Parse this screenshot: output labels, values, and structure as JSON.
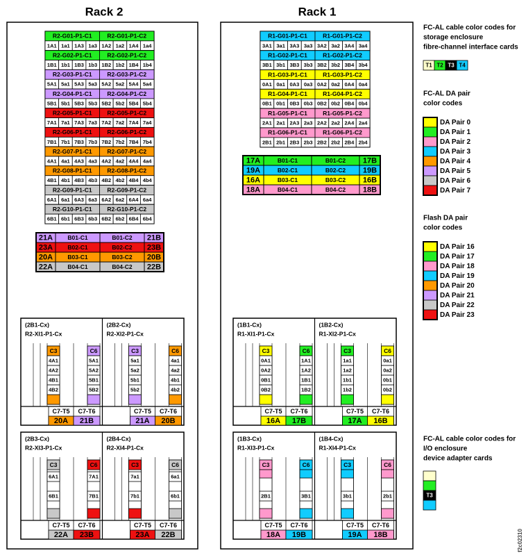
{
  "figure_id": "f2c02310",
  "racks": [
    {
      "title": "Rack 2",
      "enclosures": [
        {
          "c1": "R2-G01-P1-C1",
          "c2": "R2-G01-P1-C2",
          "color": "#22ee22",
          "ports": [
            "1A1",
            "1a1",
            "1A3",
            "1a3",
            "1A2",
            "1a2",
            "1A4",
            "1a4"
          ]
        },
        {
          "c1": "R2-G02-P1-C1",
          "c2": "R2-G02-P1-C2",
          "color": "#22ee22",
          "ports": [
            "1B1",
            "1b1",
            "1B3",
            "1b3",
            "1B2",
            "1b2",
            "1B4",
            "1b4"
          ]
        },
        {
          "c1": "R2-G03-P1-C1",
          "c2": "R2-G03-P1-C2",
          "color": "#cc99ff",
          "ports": [
            "5A1",
            "5a1",
            "5A3",
            "5a3",
            "5A2",
            "5a2",
            "5A4",
            "5a4"
          ]
        },
        {
          "c1": "R2-G04-P1-C1",
          "c2": "R2-G04-P1-C2",
          "color": "#cc99ff",
          "ports": [
            "5B1",
            "5b1",
            "5B3",
            "5b3",
            "5B2",
            "5b2",
            "5B4",
            "5b4"
          ]
        },
        {
          "c1": "R2-G05-P1-C1",
          "c2": "R2-G05-P1-C2",
          "color": "#ee1111",
          "ports": [
            "7A1",
            "7a1",
            "7A3",
            "7a3",
            "7A2",
            "7a2",
            "7A4",
            "7a4"
          ]
        },
        {
          "c1": "R2-G06-P1-C1",
          "c2": "R2-G06-P1-C2",
          "color": "#ee1111",
          "ports": [
            "7B1",
            "7b1",
            "7B3",
            "7b3",
            "7B2",
            "7b2",
            "7B4",
            "7b4"
          ]
        },
        {
          "c1": "R2-G07-P1-C1",
          "c2": "R2-G07-P1-C2",
          "color": "#ff9900",
          "ports": [
            "4A1",
            "4a1",
            "4A3",
            "4a3",
            "4A2",
            "4a2",
            "4A4",
            "4a4"
          ]
        },
        {
          "c1": "R2-G08-P1-C1",
          "c2": "R2-G08-P1-C2",
          "color": "#ff9900",
          "ports": [
            "4B1",
            "4b1",
            "4B3",
            "4b3",
            "4B2",
            "4b2",
            "4B4",
            "4b4"
          ]
        },
        {
          "c1": "R2-G09-P1-C1",
          "c2": "R2-G09-P1-C2",
          "color": "#c8c8c8",
          "ports": [
            "6A1",
            "6a1",
            "6A3",
            "6a3",
            "6A2",
            "6a2",
            "6A4",
            "6a4"
          ]
        },
        {
          "c1": "R2-G10-P1-C1",
          "c2": "R2-G10-P1-C2",
          "color": "#c8c8c8",
          "ports": [
            "6B1",
            "6b1",
            "6B3",
            "6b3",
            "6B2",
            "6b2",
            "6B4",
            "6b4"
          ]
        }
      ],
      "da_table": [
        {
          "cells": [
            "21A",
            "B01-C1",
            "B01-C2",
            "21B"
          ],
          "color": "#cc99ff"
        },
        {
          "cells": [
            "23A",
            "B02-C1",
            "B02-C2",
            "23B"
          ],
          "color": "#ee1111"
        },
        {
          "cells": [
            "20A",
            "B03-C1",
            "B03-C2",
            "20B"
          ],
          "color": "#ff9900"
        },
        {
          "cells": [
            "22A",
            "B04-C1",
            "B04-C2",
            "22B"
          ],
          "color": "#c8c8c8"
        }
      ],
      "io": [
        {
          "halves": [
            {
              "id": "(2B1-Cx)",
              "name": "R2-XI1-P1-Cx",
              "cards": [
                {
                  "label": "C3",
                  "color": "#ff9900",
                  "ports": [
                    "4A1",
                    "4A2",
                    "4B1",
                    "4B2"
                  ]
                },
                {
                  "label": "C6",
                  "color": "#cc99ff",
                  "ports": [
                    "5A1",
                    "5A2",
                    "5B1",
                    "5B2"
                  ]
                }
              ],
              "cables": [
                "C7-T5",
                "C7-T6"
              ],
              "da": [
                {
                  "label": "20A",
                  "color": "#ff9900"
                },
                {
                  "label": "21B",
                  "color": "#cc99ff"
                }
              ]
            },
            {
              "id": "(2B2-Cx)",
              "name": "R2-XI2-P1-Cx",
              "cards": [
                {
                  "label": "C3",
                  "color": "#cc99ff",
                  "ports": [
                    "5a1",
                    "5a2",
                    "5b1",
                    "5b2"
                  ]
                },
                {
                  "label": "C6",
                  "color": "#ff9900",
                  "ports": [
                    "4a1",
                    "4a2",
                    "4b1",
                    "4b2"
                  ]
                }
              ],
              "cables": [
                "C7-T5",
                "C7-T6"
              ],
              "da": [
                {
                  "label": "21A",
                  "color": "#cc99ff"
                },
                {
                  "label": "20B",
                  "color": "#ff9900"
                }
              ]
            }
          ]
        },
        {
          "halves": [
            {
              "id": "(2B3-Cx)",
              "name": "R2-XI3-P1-Cx",
              "cards": [
                {
                  "label": "C3",
                  "color": "#c8c8c8",
                  "ports": [
                    "6A1",
                    "6B1"
                  ]
                },
                {
                  "label": "C6",
                  "color": "#ee1111",
                  "ports": [
                    "7A1",
                    "7B1"
                  ]
                }
              ],
              "cables": [
                "C7-T5",
                "C7-T6"
              ],
              "da": [
                {
                  "label": "22A",
                  "color": "#c8c8c8"
                },
                {
                  "label": "23B",
                  "color": "#ee1111"
                }
              ]
            },
            {
              "id": "(2B4-Cx)",
              "name": "R2-XI4-P1-Cx",
              "cards": [
                {
                  "label": "C3",
                  "color": "#ee1111",
                  "ports": [
                    "7a1",
                    "7b1"
                  ]
                },
                {
                  "label": "C6",
                  "color": "#c8c8c8",
                  "ports": [
                    "6a1",
                    "6b1"
                  ]
                }
              ],
              "cables": [
                "C7-T5",
                "C7-T6"
              ],
              "da": [
                {
                  "label": "23A",
                  "color": "#ee1111"
                },
                {
                  "label": "22B",
                  "color": "#c8c8c8"
                }
              ]
            }
          ]
        }
      ]
    },
    {
      "title": "Rack 1",
      "enclosures": [
        {
          "c1": "R1-G01-P1-C1",
          "c2": "R1-G01-P1-C2",
          "color": "#11ccff",
          "ports": [
            "3A1",
            "3a1",
            "3A3",
            "3a3",
            "3A2",
            "3a2",
            "3A4",
            "3a4"
          ]
        },
        {
          "c1": "R1-G02-P1-C1",
          "c2": "R1-G02-P1-C2",
          "color": "#11ccff",
          "ports": [
            "3B1",
            "3b1",
            "3B3",
            "3b3",
            "3B2",
            "3b2",
            "3B4",
            "3b4"
          ]
        },
        {
          "c1": "R1-G03-P1-C1",
          "c2": "R1-G03-P1-C2",
          "color": "#ffff00",
          "ports": [
            "0A1",
            "0a1",
            "0A3",
            "0a3",
            "0A2",
            "0a2",
            "0A4",
            "0a4"
          ]
        },
        {
          "c1": "R1-G04-P1-C1",
          "c2": "R1-G04-P1-C2",
          "color": "#ffff00",
          "ports": [
            "0B1",
            "0b1",
            "0B3",
            "0b3",
            "0B2",
            "0b2",
            "0B4",
            "0b4"
          ]
        },
        {
          "c1": "R1-G05-P1-C1",
          "c2": "R1-G05-P1-C2",
          "color": "#ff99cc",
          "ports": [
            "2A1",
            "2a1",
            "2A3",
            "2a3",
            "2A2",
            "2a2",
            "2A4",
            "2a4"
          ]
        },
        {
          "c1": "R1-G06-P1-C1",
          "c2": "R1-G06-P1-C2",
          "color": "#ff99cc",
          "ports": [
            "2B1",
            "2b1",
            "2B3",
            "2b3",
            "2B2",
            "2b2",
            "2B4",
            "2b4"
          ]
        }
      ],
      "da_table": [
        {
          "cells": [
            "17A",
            "B01-C1",
            "B01-C2",
            "17B"
          ],
          "color": "#22ee22"
        },
        {
          "cells": [
            "19A",
            "B02-C1",
            "B02-C2",
            "19B"
          ],
          "color": "#11ccff"
        },
        {
          "cells": [
            "16A",
            "B03-C1",
            "B03-C2",
            "16B"
          ],
          "color": "#ffff00"
        },
        {
          "cells": [
            "18A",
            "B04-C1",
            "B04-C2",
            "18B"
          ],
          "color": "#ff99cc"
        }
      ],
      "io": [
        {
          "halves": [
            {
              "id": "(1B1-Cx)",
              "name": "R1-XI1-P1-Cx",
              "cards": [
                {
                  "label": "C3",
                  "color": "#ffff00",
                  "ports": [
                    "0A1",
                    "0A2",
                    "0B1",
                    "0B2"
                  ]
                },
                {
                  "label": "C6",
                  "color": "#22ee22",
                  "ports": [
                    "1A1",
                    "1A2",
                    "1B1",
                    "1B2"
                  ]
                }
              ],
              "cables": [
                "C7-T5",
                "C7-T6"
              ],
              "da": [
                {
                  "label": "16A",
                  "color": "#ffff00"
                },
                {
                  "label": "17B",
                  "color": "#22ee22"
                }
              ]
            },
            {
              "id": "(1B2-Cx)",
              "name": "R1-XI2-P1-Cx",
              "cards": [
                {
                  "label": "C3",
                  "color": "#22ee22",
                  "ports": [
                    "1a1",
                    "1a2",
                    "1b1",
                    "1b2"
                  ]
                },
                {
                  "label": "C6",
                  "color": "#ffff00",
                  "ports": [
                    "0a1",
                    "0a2",
                    "0b1",
                    "0b2"
                  ]
                }
              ],
              "cables": [
                "C7-T5",
                "C7-T6"
              ],
              "da": [
                {
                  "label": "17A",
                  "color": "#22ee22"
                },
                {
                  "label": "16B",
                  "color": "#ffff00"
                }
              ]
            }
          ]
        },
        {
          "halves": [
            {
              "id": "(1B3-Cx)",
              "name": "R1-XI3-P1-Cx",
              "cards": [
                {
                  "label": "C3",
                  "color": "#ff99cc",
                  "ports": [
                    "2B1"
                  ]
                },
                {
                  "label": "C6",
                  "color": "#11ccff",
                  "ports": [
                    "3B1"
                  ]
                }
              ],
              "cables": [
                "C7-T5",
                "C7-T6"
              ],
              "da": [
                {
                  "label": "18A",
                  "color": "#ff99cc"
                },
                {
                  "label": "19B",
                  "color": "#11ccff"
                }
              ]
            },
            {
              "id": "(1B4-Cx)",
              "name": "R1-XI4-P1-Cx",
              "cards": [
                {
                  "label": "C3",
                  "color": "#11ccff",
                  "ports": [
                    "3b1"
                  ]
                },
                {
                  "label": "C6",
                  "color": "#ff99cc",
                  "ports": [
                    "2b1"
                  ]
                }
              ],
              "cables": [
                "C7-T5",
                "C7-T6"
              ],
              "da": [
                {
                  "label": "19A",
                  "color": "#11ccff"
                },
                {
                  "label": "18B",
                  "color": "#ff99cc"
                }
              ]
            }
          ]
        }
      ]
    }
  ],
  "legend": {
    "storage": {
      "title": [
        "FC-AL cable color codes for",
        "storage enclosure",
        "fibre-channel interface cards"
      ],
      "swatches": [
        {
          "label": "T1",
          "color": "#ffffcc"
        },
        {
          "label": "T2",
          "color": "#22ee22"
        },
        {
          "label": "T3",
          "color": "#000000"
        },
        {
          "label": "T4",
          "color": "#11ccff"
        }
      ]
    },
    "da": {
      "title": [
        "FC-AL DA pair",
        "color codes"
      ],
      "items": [
        {
          "label": "DA Pair 0",
          "color": "#ffff00"
        },
        {
          "label": "DA Pair 1",
          "color": "#22ee22"
        },
        {
          "label": "DA Pair 2",
          "color": "#ff99cc"
        },
        {
          "label": "DA Pair 3",
          "color": "#11ccff"
        },
        {
          "label": "DA Pair 4",
          "color": "#ff9900"
        },
        {
          "label": "DA Pair 5",
          "color": "#cc99ff"
        },
        {
          "label": "DA Pair 6",
          "color": "#c8c8c8"
        },
        {
          "label": "DA Pair 7",
          "color": "#ee1111"
        }
      ]
    },
    "flash": {
      "title": [
        "Flash DA pair",
        "color codes"
      ],
      "items": [
        {
          "label": "DA Pair 16",
          "color": "#ffff00"
        },
        {
          "label": "DA Pair 17",
          "color": "#22ee22"
        },
        {
          "label": "DA Pair 18",
          "color": "#ff99cc"
        },
        {
          "label": "DA Pair 19",
          "color": "#11ccff"
        },
        {
          "label": "DA Pair 20",
          "color": "#ff9900"
        },
        {
          "label": "DA Pair 21",
          "color": "#cc99ff"
        },
        {
          "label": "DA Pair 22",
          "color": "#c8c8c8"
        },
        {
          "label": "DA Pair 23",
          "color": "#ee1111"
        }
      ]
    },
    "io": {
      "title": [
        "FC-AL cable color codes for",
        "I/O enclosure",
        "device adapter cards"
      ],
      "swatches": [
        {
          "color": "#ffffcc"
        },
        {
          "color": "#22ee22"
        },
        {
          "label": "T3",
          "color": "#000000"
        },
        {
          "color": "#11ccff"
        }
      ]
    }
  }
}
